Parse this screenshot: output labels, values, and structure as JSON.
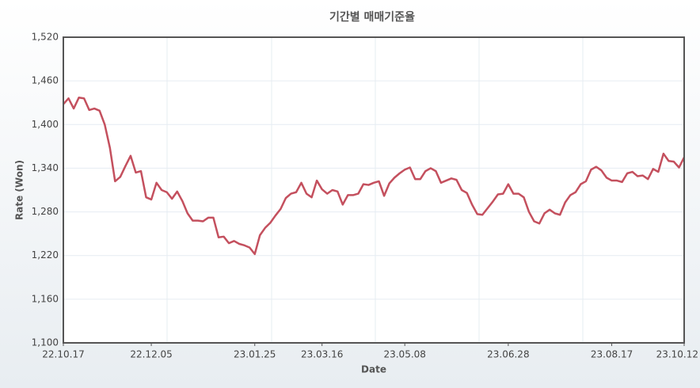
{
  "chart_data": {
    "type": "line",
    "title": "기간별 매매기준율",
    "x_label": "Date",
    "y_label": "Rate (Won)",
    "categories": [
      "22.10.17",
      null,
      null,
      null,
      null,
      null,
      null,
      null,
      null,
      null,
      null,
      null,
      null,
      null,
      null,
      null,
      null,
      "22.12.05",
      null,
      null,
      null,
      null,
      null,
      null,
      null,
      null,
      null,
      null,
      null,
      null,
      null,
      null,
      null,
      null,
      null,
      null,
      null,
      "23.01.25",
      null,
      null,
      null,
      null,
      null,
      null,
      null,
      null,
      null,
      null,
      null,
      null,
      "23.03.16",
      null,
      null,
      null,
      null,
      null,
      null,
      null,
      null,
      null,
      null,
      null,
      null,
      null,
      null,
      null,
      "23.05.08",
      null,
      null,
      null,
      null,
      null,
      null,
      null,
      null,
      null,
      null,
      null,
      null,
      null,
      null,
      null,
      null,
      null,
      null,
      null,
      "23.06.28",
      null,
      null,
      null,
      null,
      null,
      null,
      null,
      null,
      null,
      null,
      null,
      null,
      null,
      null,
      null,
      null,
      null,
      null,
      null,
      "23.08.17",
      null,
      null,
      null,
      null,
      null,
      null,
      null,
      null,
      null,
      null,
      null,
      null,
      null,
      "23.10.12"
    ],
    "series": [
      {
        "name": "매매기준율",
        "color": "#c4505e",
        "values": [
          1428,
          1436,
          1422,
          1437,
          1436,
          1420,
          1422,
          1419,
          1400,
          1368,
          1322,
          1328,
          1343,
          1357,
          1334,
          1336,
          1300,
          1297,
          1320,
          1310,
          1307,
          1298,
          1308,
          1295,
          1278,
          1268,
          1268,
          1267,
          1272,
          1272,
          1245,
          1246,
          1237,
          1240,
          1236,
          1234,
          1231,
          1222,
          1248,
          1258,
          1265,
          1275,
          1284,
          1299,
          1305,
          1307,
          1320,
          1305,
          1300,
          1323,
          1311,
          1305,
          1310,
          1308,
          1290,
          1303,
          1303,
          1305,
          1318,
          1317,
          1320,
          1322,
          1302,
          1319,
          1327,
          1333,
          1338,
          1341,
          1325,
          1325,
          1336,
          1340,
          1336,
          1320,
          1323,
          1326,
          1324,
          1310,
          1306,
          1290,
          1277,
          1276,
          1285,
          1294,
          1304,
          1305,
          1318,
          1305,
          1305,
          1300,
          1280,
          1267,
          1264,
          1278,
          1283,
          1278,
          1276,
          1293,
          1303,
          1307,
          1318,
          1322,
          1338,
          1342,
          1337,
          1327,
          1323,
          1323,
          1321,
          1333,
          1335,
          1329,
          1330,
          1325,
          1339,
          1335,
          1360,
          1350,
          1349,
          1341,
          1355
        ]
      }
    ],
    "ylim": [
      1100,
      1520
    ],
    "yticks": [
      {
        "value": 1100,
        "label": "1,100"
      },
      {
        "value": 1160,
        "label": "1,160"
      },
      {
        "value": 1220,
        "label": "1,220"
      },
      {
        "value": 1280,
        "label": "1,280"
      },
      {
        "value": 1340,
        "label": "1,340"
      },
      {
        "value": 1400,
        "label": "1,400"
      },
      {
        "value": 1460,
        "label": "1,460"
      },
      {
        "value": 1520,
        "label": "1,520"
      }
    ],
    "grid": true
  }
}
